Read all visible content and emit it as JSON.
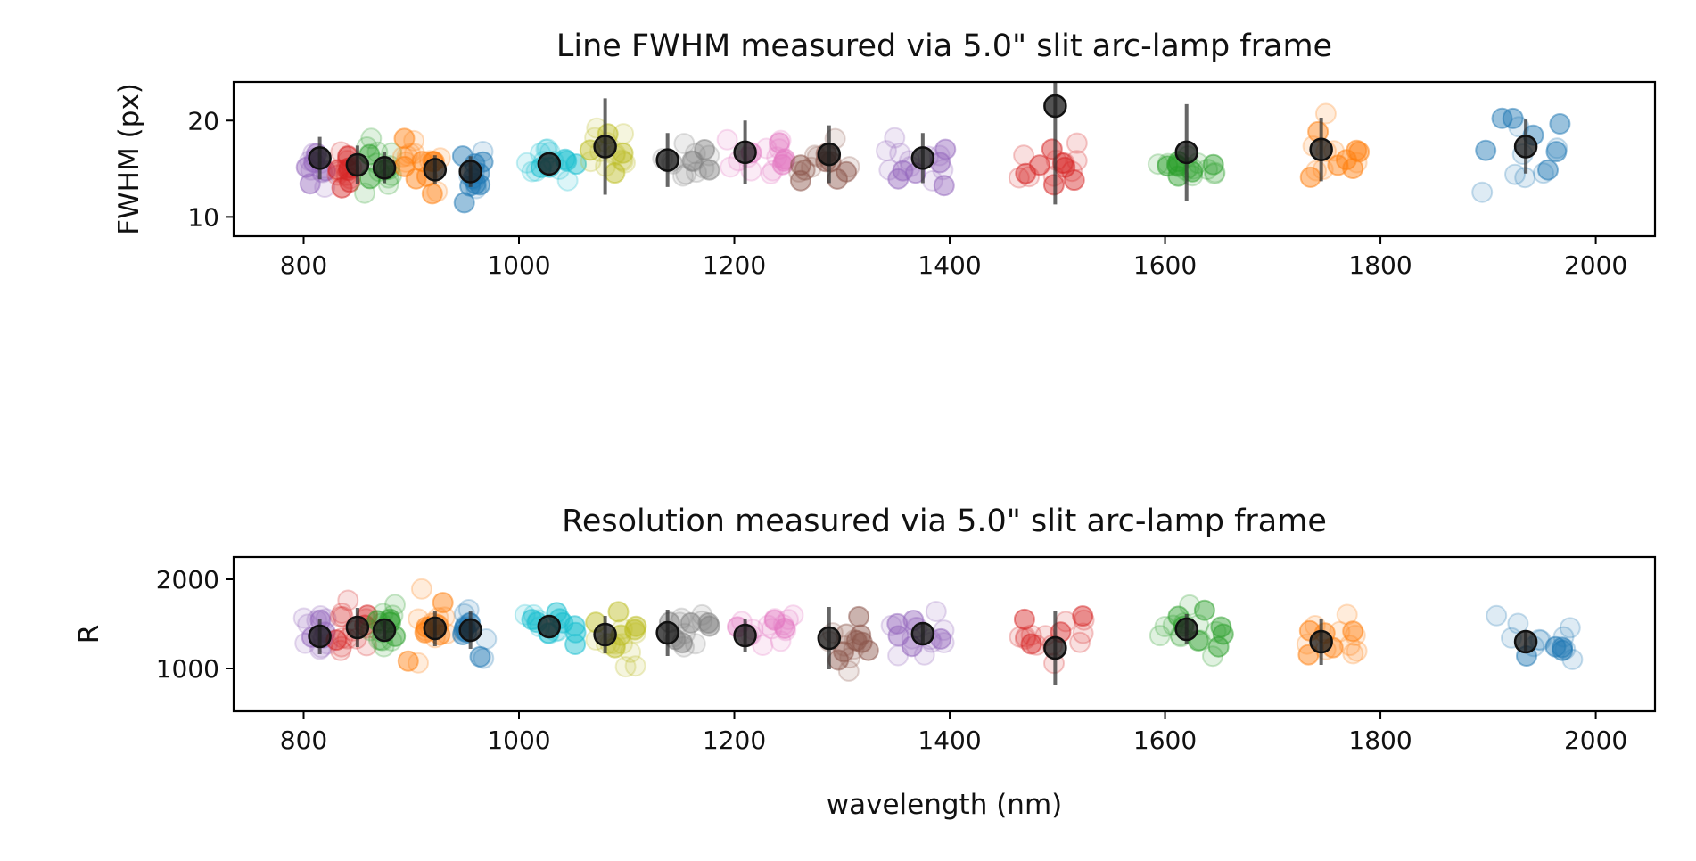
{
  "chart_data": [
    {
      "type": "scatter",
      "title": "Line FWHM measured via 5.0\" slit arc-lamp frame",
      "xlabel": "",
      "ylabel": "FWHM (px)",
      "xlim": [
        735,
        2055
      ],
      "ylim": [
        8,
        24
      ],
      "xticks": [
        800,
        1000,
        1200,
        1400,
        1600,
        1800,
        2000
      ],
      "xtick_labels": [
        "800",
        "1000",
        "1200",
        "1400",
        "1600",
        "1800",
        "2000"
      ],
      "yticks": [
        10,
        20
      ],
      "ytick_labels": [
        "10",
        "20"
      ],
      "grid": false,
      "point_clusters": [
        {
          "center": [
            812,
            15.0
          ],
          "x_spread": 12,
          "y_spread": 2.5,
          "n": 14,
          "color": "#9467bd"
        },
        {
          "center": [
            840,
            14.5
          ],
          "x_spread": 15,
          "y_spread": 3.0,
          "n": 16,
          "color": "#d62728"
        },
        {
          "center": [
            868,
            15.5
          ],
          "x_spread": 14,
          "y_spread": 3.0,
          "n": 16,
          "color": "#2ca02c"
        },
        {
          "center": [
            910,
            15.2
          ],
          "x_spread": 18,
          "y_spread": 3.0,
          "n": 18,
          "color": "#ff7f0e"
        },
        {
          "center": [
            955,
            14.5
          ],
          "x_spread": 12,
          "y_spread": 3.0,
          "n": 14,
          "color": "#1f77b4"
        },
        {
          "center": [
            1030,
            15.6
          ],
          "x_spread": 25,
          "y_spread": 2.0,
          "n": 16,
          "color": "#17becf"
        },
        {
          "center": [
            1085,
            17.0
          ],
          "x_spread": 20,
          "y_spread": 3.5,
          "n": 16,
          "color": "#bcbd22"
        },
        {
          "center": [
            1155,
            15.5
          ],
          "x_spread": 22,
          "y_spread": 2.5,
          "n": 14,
          "color": "#7f7f7f"
        },
        {
          "center": [
            1220,
            15.8
          ],
          "x_spread": 28,
          "y_spread": 2.5,
          "n": 16,
          "color": "#e377c2"
        },
        {
          "center": [
            1285,
            16.0
          ],
          "x_spread": 25,
          "y_spread": 3.0,
          "n": 16,
          "color": "#8c564b"
        },
        {
          "center": [
            1370,
            15.8
          ],
          "x_spread": 30,
          "y_spread": 2.5,
          "n": 16,
          "color": "#9467bd"
        },
        {
          "center": [
            1490,
            15.5
          ],
          "x_spread": 30,
          "y_spread": 2.5,
          "n": 16,
          "color": "#d62728"
        },
        {
          "center": [
            1620,
            15.0
          ],
          "x_spread": 30,
          "y_spread": 2.0,
          "n": 18,
          "color": "#2ca02c"
        },
        {
          "center": [
            1760,
            16.0
          ],
          "x_spread": 25,
          "y_spread": 4.0,
          "n": 14,
          "color": "#ff7f0e"
        },
        {
          "center": [
            1930,
            17.0
          ],
          "x_spread": 40,
          "y_spread": 4.0,
          "n": 14,
          "color": "#1f77b4"
        }
      ],
      "binned_means": [
        {
          "x": 815,
          "y": 16.1,
          "err": 2.2
        },
        {
          "x": 850,
          "y": 15.4,
          "err": 2.0
        },
        {
          "x": 875,
          "y": 15.1,
          "err": 1.6
        },
        {
          "x": 922,
          "y": 14.9,
          "err": 1.5
        },
        {
          "x": 955,
          "y": 14.7,
          "err": 1.6
        },
        {
          "x": 1028,
          "y": 15.5,
          "err": 0
        },
        {
          "x": 1080,
          "y": 17.3,
          "err": 5.0
        },
        {
          "x": 1138,
          "y": 15.9,
          "err": 2.8
        },
        {
          "x": 1210,
          "y": 16.7,
          "err": 3.3
        },
        {
          "x": 1288,
          "y": 16.5,
          "err": 3.0
        },
        {
          "x": 1375,
          "y": 16.1,
          "err": 2.6
        },
        {
          "x": 1498,
          "y": 21.5,
          "err": 10.2
        },
        {
          "x": 1620,
          "y": 16.7,
          "err": 5.0
        },
        {
          "x": 1745,
          "y": 17.0,
          "err": 3.3
        },
        {
          "x": 1935,
          "y": 17.3,
          "err": 2.8
        }
      ]
    },
    {
      "type": "scatter",
      "title": "Resolution measured via 5.0\" slit arc-lamp frame",
      "xlabel": "wavelength (nm)",
      "ylabel": "R",
      "xlim": [
        735,
        2055
      ],
      "ylim": [
        520,
        2250
      ],
      "xticks": [
        800,
        1000,
        1200,
        1400,
        1600,
        1800,
        2000
      ],
      "xtick_labels": [
        "800",
        "1000",
        "1200",
        "1400",
        "1600",
        "1800",
        "2000"
      ],
      "yticks": [
        1000,
        2000
      ],
      "ytick_labels": [
        "1000",
        "2000"
      ],
      "grid": false,
      "point_clusters": [
        {
          "center": [
            812,
            1450
          ],
          "x_spread": 12,
          "y_spread": 350,
          "n": 14,
          "color": "#9467bd"
        },
        {
          "center": [
            845,
            1500
          ],
          "x_spread": 15,
          "y_spread": 400,
          "n": 16,
          "color": "#d62728"
        },
        {
          "center": [
            875,
            1450
          ],
          "x_spread": 15,
          "y_spread": 350,
          "n": 16,
          "color": "#2ca02c"
        },
        {
          "center": [
            915,
            1450
          ],
          "x_spread": 18,
          "y_spread": 400,
          "n": 18,
          "color": "#ff7f0e"
        },
        {
          "center": [
            958,
            1450
          ],
          "x_spread": 12,
          "y_spread": 350,
          "n": 14,
          "color": "#1f77b4"
        },
        {
          "center": [
            1030,
            1470
          ],
          "x_spread": 25,
          "y_spread": 200,
          "n": 16,
          "color": "#17becf"
        },
        {
          "center": [
            1090,
            1350
          ],
          "x_spread": 20,
          "y_spread": 350,
          "n": 16,
          "color": "#bcbd22"
        },
        {
          "center": [
            1160,
            1450
          ],
          "x_spread": 22,
          "y_spread": 250,
          "n": 14,
          "color": "#7f7f7f"
        },
        {
          "center": [
            1230,
            1420
          ],
          "x_spread": 28,
          "y_spread": 250,
          "n": 16,
          "color": "#e377c2"
        },
        {
          "center": [
            1300,
            1350
          ],
          "x_spread": 25,
          "y_spread": 350,
          "n": 16,
          "color": "#8c564b"
        },
        {
          "center": [
            1375,
            1400
          ],
          "x_spread": 30,
          "y_spread": 300,
          "n": 16,
          "color": "#9467bd"
        },
        {
          "center": [
            1495,
            1350
          ],
          "x_spread": 30,
          "y_spread": 300,
          "n": 16,
          "color": "#d62728"
        },
        {
          "center": [
            1625,
            1420
          ],
          "x_spread": 30,
          "y_spread": 250,
          "n": 18,
          "color": "#2ca02c"
        },
        {
          "center": [
            1755,
            1350
          ],
          "x_spread": 25,
          "y_spread": 350,
          "n": 14,
          "color": "#ff7f0e"
        },
        {
          "center": [
            1940,
            1300
          ],
          "x_spread": 40,
          "y_spread": 300,
          "n": 14,
          "color": "#1f77b4"
        }
      ],
      "binned_means": [
        {
          "x": 815,
          "y": 1360,
          "err": 200
        },
        {
          "x": 850,
          "y": 1460,
          "err": 220
        },
        {
          "x": 875,
          "y": 1430,
          "err": 100
        },
        {
          "x": 922,
          "y": 1450,
          "err": 200
        },
        {
          "x": 955,
          "y": 1430,
          "err": 210
        },
        {
          "x": 1028,
          "y": 1470,
          "err": 0
        },
        {
          "x": 1080,
          "y": 1380,
          "err": 210
        },
        {
          "x": 1138,
          "y": 1400,
          "err": 260
        },
        {
          "x": 1210,
          "y": 1370,
          "err": 180
        },
        {
          "x": 1288,
          "y": 1340,
          "err": 350
        },
        {
          "x": 1375,
          "y": 1390,
          "err": 130
        },
        {
          "x": 1498,
          "y": 1230,
          "err": 420
        },
        {
          "x": 1620,
          "y": 1440,
          "err": 170
        },
        {
          "x": 1745,
          "y": 1300,
          "err": 260
        },
        {
          "x": 1935,
          "y": 1300,
          "err": 130
        }
      ]
    }
  ]
}
